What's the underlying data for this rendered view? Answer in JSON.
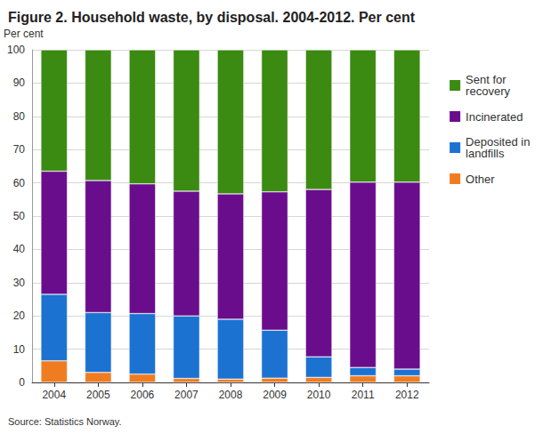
{
  "chart_data": {
    "type": "bar",
    "stacked": true,
    "title": "Figure 2. Household waste, by disposal. 2004-2012. Per cent",
    "y_label": "Per cent",
    "source": "Source: Statistics Norway.",
    "categories": [
      "2004",
      "2005",
      "2006",
      "2007",
      "2008",
      "2009",
      "2010",
      "2011",
      "2012"
    ],
    "series": [
      {
        "name": "Other",
        "color": "#f07c22",
        "values": [
          6.5,
          3,
          2.5,
          1.2,
          1,
          1.3,
          1.5,
          2,
          2
        ]
      },
      {
        "name": "Deposited in landfills",
        "color": "#1b72d1",
        "values": [
          20,
          18,
          18.2,
          18.8,
          18,
          14.4,
          6.2,
          2.5,
          2
        ]
      },
      {
        "name": "Incinerated",
        "color": "#6a0d8c",
        "values": [
          37,
          39.7,
          39,
          37.5,
          37.7,
          41.6,
          50.3,
          55.7,
          56.2
        ]
      },
      {
        "name": "Sent for recovery",
        "color": "#3b8a12",
        "values": [
          36.5,
          39.3,
          40.3,
          42.5,
          43.3,
          42.7,
          42,
          39.8,
          39.8
        ]
      }
    ],
    "ylim": [
      0,
      100
    ],
    "yticks": [
      0,
      10,
      20,
      30,
      40,
      50,
      60,
      70,
      80,
      90,
      100
    ],
    "grid": true,
    "legend": "right"
  }
}
